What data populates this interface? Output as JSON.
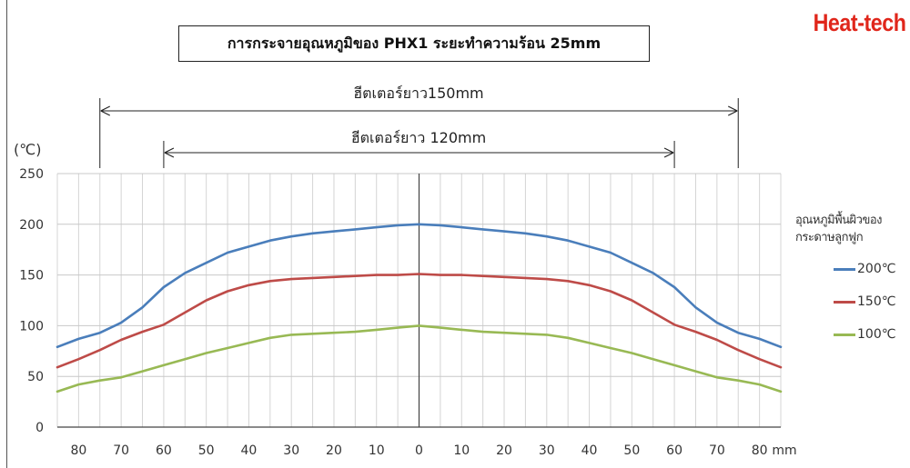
{
  "title": "การกระจายอุณหภูมิของ PHX1 ระยะทำความร้อน 25mm",
  "brand": "Heat-tech",
  "dimension_labels": {
    "outer": "ฮีตเตอร์ยาว150mm",
    "inner": "ฮีตเตอร์ยาว 120mm"
  },
  "legend": {
    "title": "อุณหภูมิพื้นผิวของกระดาษลูกฟูก",
    "position": "right"
  },
  "chart_data": {
    "type": "line",
    "ylabel": "(℃)",
    "x_unit": "mm",
    "ylim": [
      0,
      250
    ],
    "yticks": [
      0,
      50,
      100,
      150,
      200,
      250
    ],
    "xlim": [
      -85,
      85
    ],
    "x_tick_labels": [
      "80",
      "70",
      "60",
      "50",
      "40",
      "30",
      "20",
      "10",
      "0",
      "10",
      "20",
      "30",
      "40",
      "50",
      "60",
      "70",
      "80"
    ],
    "grid": true,
    "x": [
      -85,
      -80,
      -75,
      -70,
      -65,
      -60,
      -55,
      -50,
      -45,
      -40,
      -35,
      -30,
      -25,
      -20,
      -15,
      -10,
      -5,
      0,
      5,
      10,
      15,
      20,
      25,
      30,
      35,
      40,
      45,
      50,
      55,
      60,
      65,
      70,
      75,
      80,
      85
    ],
    "series": [
      {
        "name": "200℃",
        "color": "#4a7ebb",
        "values": [
          79,
          87,
          93,
          103,
          118,
          138,
          152,
          162,
          172,
          178,
          184,
          188,
          191,
          193,
          195,
          197,
          199,
          200,
          199,
          197,
          195,
          193,
          191,
          188,
          184,
          178,
          172,
          162,
          152,
          138,
          118,
          103,
          93,
          87,
          79
        ]
      },
      {
        "name": "150℃",
        "color": "#be4b48",
        "values": [
          59,
          67,
          76,
          86,
          94,
          101,
          113,
          125,
          134,
          140,
          144,
          146,
          147,
          148,
          149,
          150,
          150,
          151,
          150,
          150,
          149,
          148,
          147,
          146,
          144,
          140,
          134,
          125,
          113,
          101,
          94,
          86,
          76,
          67,
          59
        ]
      },
      {
        "name": "100℃",
        "color": "#98b954",
        "values": [
          35,
          42,
          46,
          49,
          55,
          61,
          67,
          73,
          78,
          83,
          88,
          91,
          92,
          93,
          94,
          96,
          98,
          100,
          98,
          96,
          94,
          93,
          92,
          91,
          88,
          83,
          78,
          73,
          67,
          61,
          55,
          49,
          46,
          42,
          35
        ]
      }
    ]
  }
}
